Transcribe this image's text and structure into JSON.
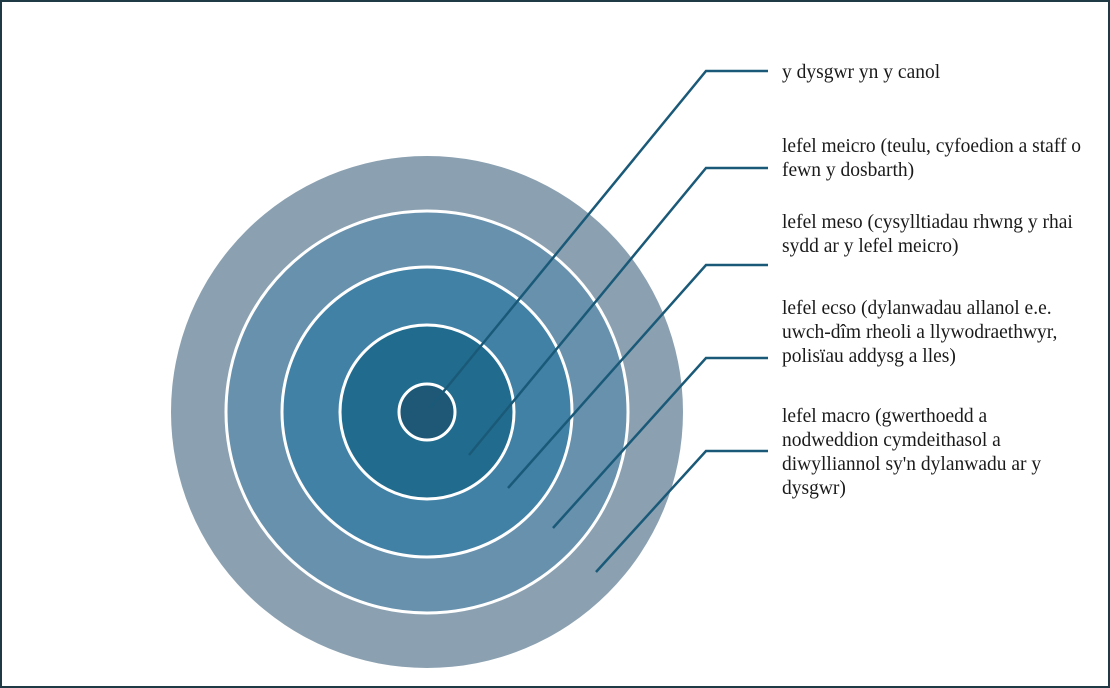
{
  "diagram": {
    "levels": [
      {
        "id": "center",
        "label": "y dysgwr yn y canol",
        "color": "#1e5876"
      },
      {
        "id": "micro",
        "label": "lefel meicro (teulu, cyfoedion a staff o fewn y dosbarth)",
        "color": "#216c8e"
      },
      {
        "id": "meso",
        "label": "lefel meso (cysylltiadau rhwng y rhai sydd ar y lefel meicro)",
        "color": "#4181a6"
      },
      {
        "id": "exo",
        "label": "lefel ecso (dylanwadau allanol e.e. uwch-dîm rheoli a llywodraethwyr, polisïau addysg a lles)",
        "color": "#6791ad"
      },
      {
        "id": "macro",
        "label": "lefel macro (gwerthoedd a nodweddion cymdeithasol a diwylliannol sy'n dylanwadu ar y dysgwr)",
        "color": "#8ba1b1"
      }
    ],
    "ring_border_color": "#ffffff",
    "leader_line_color": "#1a5a78"
  }
}
